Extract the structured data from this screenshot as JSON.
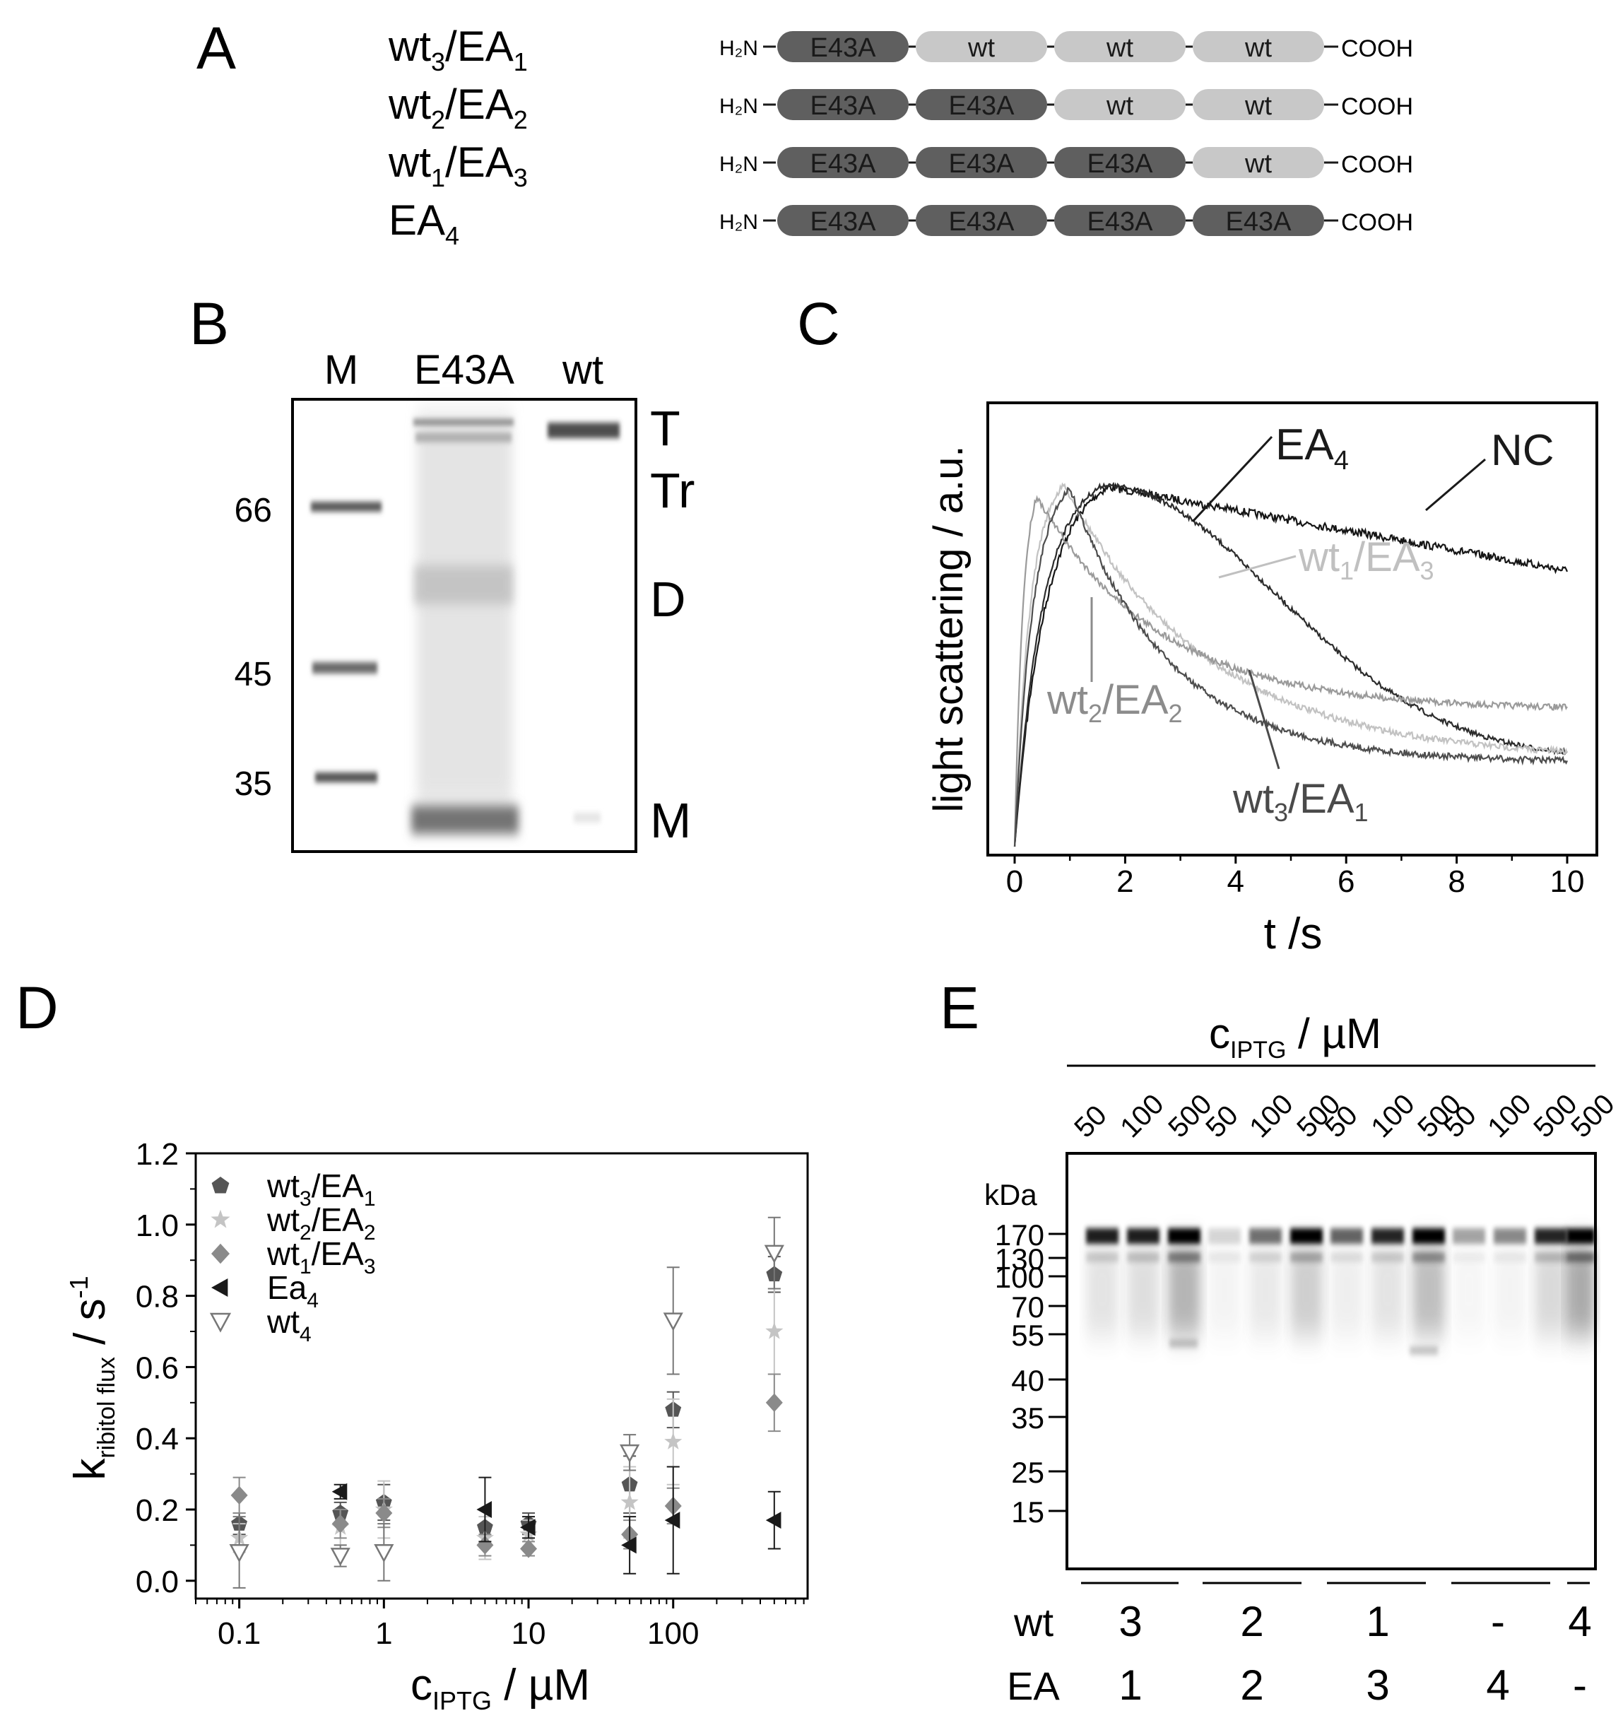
{
  "panelA": {
    "label": "A",
    "n_term": "H₂N",
    "c_term": "COOH",
    "constructs": [
      {
        "wt_n": "3",
        "ea_n": "1",
        "domains": [
          "E43A",
          "wt",
          "wt",
          "wt"
        ]
      },
      {
        "wt_n": "2",
        "ea_n": "2",
        "domains": [
          "E43A",
          "E43A",
          "wt",
          "wt"
        ]
      },
      {
        "wt_n": "1",
        "ea_n": "3",
        "domains": [
          "E43A",
          "E43A",
          "E43A",
          "wt"
        ]
      },
      {
        "wt_n": null,
        "ea_n": "4",
        "domains": [
          "E43A",
          "E43A",
          "E43A",
          "E43A"
        ]
      }
    ],
    "colors": {
      "mutant": "#5f5f5f",
      "wild": "#c8c8c8"
    }
  },
  "panelB": {
    "label": "B",
    "lanes": [
      "M",
      "E43A",
      "wt"
    ],
    "markers": [
      "66",
      "45",
      "35"
    ],
    "bands": [
      "T",
      "Tr",
      "D",
      "M"
    ]
  },
  "panelC": {
    "label": "C",
    "ylabel": "light scattering / a.u.",
    "xlabel": "t /s",
    "xticks": [
      "0",
      "2",
      "4",
      "6",
      "8",
      "10"
    ],
    "labels": {
      "ea4": "EA4",
      "nc": "NC",
      "wt1ea3": "wt1/EA3",
      "wt2ea2": "wt2/EA2",
      "wt3ea1": "wt3/EA1"
    }
  },
  "chart_data": {
    "type": "scatter",
    "title": "",
    "xlabel": "c_IPTG / µM",
    "ylabel": "k_ribitol flux / s^-1",
    "xscale": "log",
    "xlim": [
      0.05,
      850
    ],
    "ylim": [
      -0.05,
      1.2
    ],
    "xticks": [
      "0.1",
      "1",
      "10",
      "100"
    ],
    "yticks": [
      "0.0",
      "0.2",
      "0.4",
      "0.6",
      "0.8",
      "1.0",
      "1.2"
    ],
    "series": [
      {
        "name": "wt3/EA1",
        "sub1": "3",
        "sub2": "1",
        "main": "wt",
        "main2": "EA",
        "marker": "pentagon",
        "color": "#555555",
        "x": [
          0.1,
          0.5,
          1,
          5,
          10,
          50,
          100,
          500
        ],
        "y": [
          0.16,
          0.19,
          0.22,
          0.15,
          0.16,
          0.27,
          0.48,
          0.86
        ],
        "err": [
          0.03,
          0.03,
          0.05,
          0.05,
          0.03,
          0.08,
          0.05,
          0.05
        ]
      },
      {
        "name": "wt2/EA2",
        "sub1": "2",
        "sub2": "2",
        "main": "wt",
        "main2": "EA",
        "marker": "star",
        "color": "#c4c4c4",
        "x": [
          0.1,
          0.5,
          1,
          5,
          10,
          50,
          100,
          500
        ],
        "y": [
          0.12,
          0.15,
          0.2,
          0.12,
          0.13,
          0.22,
          0.39,
          0.7
        ],
        "err": [
          0.04,
          0.05,
          0.08,
          0.06,
          0.04,
          0.1,
          0.12,
          0.12
        ]
      },
      {
        "name": "wt1/EA3",
        "sub1": "1",
        "sub2": "3",
        "main": "wt",
        "main2": "EA",
        "marker": "diamond",
        "color": "#8a8a8a",
        "x": [
          0.1,
          0.5,
          1,
          5,
          10,
          50,
          100,
          500
        ],
        "y": [
          0.24,
          0.16,
          0.19,
          0.1,
          0.09,
          0.13,
          0.21,
          0.5
        ],
        "err": [
          0.05,
          0.04,
          0.04,
          0.03,
          0.02,
          0.04,
          0.05,
          0.08
        ]
      },
      {
        "name": "Ea4",
        "sub1": "4",
        "sub2": "",
        "main": "Ea",
        "main2": "",
        "marker": "triangle-left",
        "color": "#1a1a1a",
        "x": [
          0.5,
          5,
          10,
          50,
          100,
          500
        ],
        "y": [
          0.25,
          0.2,
          0.15,
          0.1,
          0.17,
          0.17
        ],
        "err": [
          0.02,
          0.09,
          0.03,
          0.08,
          0.15,
          0.08
        ]
      },
      {
        "name": "wt4",
        "sub1": "4",
        "sub2": "",
        "main": "wt",
        "main2": "",
        "marker": "triangle-down-open",
        "color": "#777777",
        "x": [
          0.1,
          0.5,
          1,
          50,
          100,
          500
        ],
        "y": [
          0.08,
          0.07,
          0.08,
          0.36,
          0.73,
          0.92
        ],
        "err": [
          0.1,
          0.03,
          0.08,
          0.05,
          0.15,
          0.1
        ]
      }
    ]
  },
  "panelD": {
    "label": "D"
  },
  "panelE": {
    "label": "E",
    "header": "c_IPTG / µM",
    "lane_concs": [
      "50",
      "100",
      "500",
      "50",
      "100",
      "500",
      "50",
      "100",
      "500",
      "50",
      "100",
      "500",
      "500"
    ],
    "kda_label": "kDa",
    "markers": [
      "170",
      "130",
      "100",
      "70",
      "55",
      "40",
      "35",
      "25",
      "15"
    ],
    "row_wt_label": "wt",
    "row_ea_label": "EA",
    "groups_wt": [
      "3",
      "2",
      "1",
      "-",
      "4"
    ],
    "groups_ea": [
      "1",
      "2",
      "3",
      "4",
      "-"
    ]
  }
}
